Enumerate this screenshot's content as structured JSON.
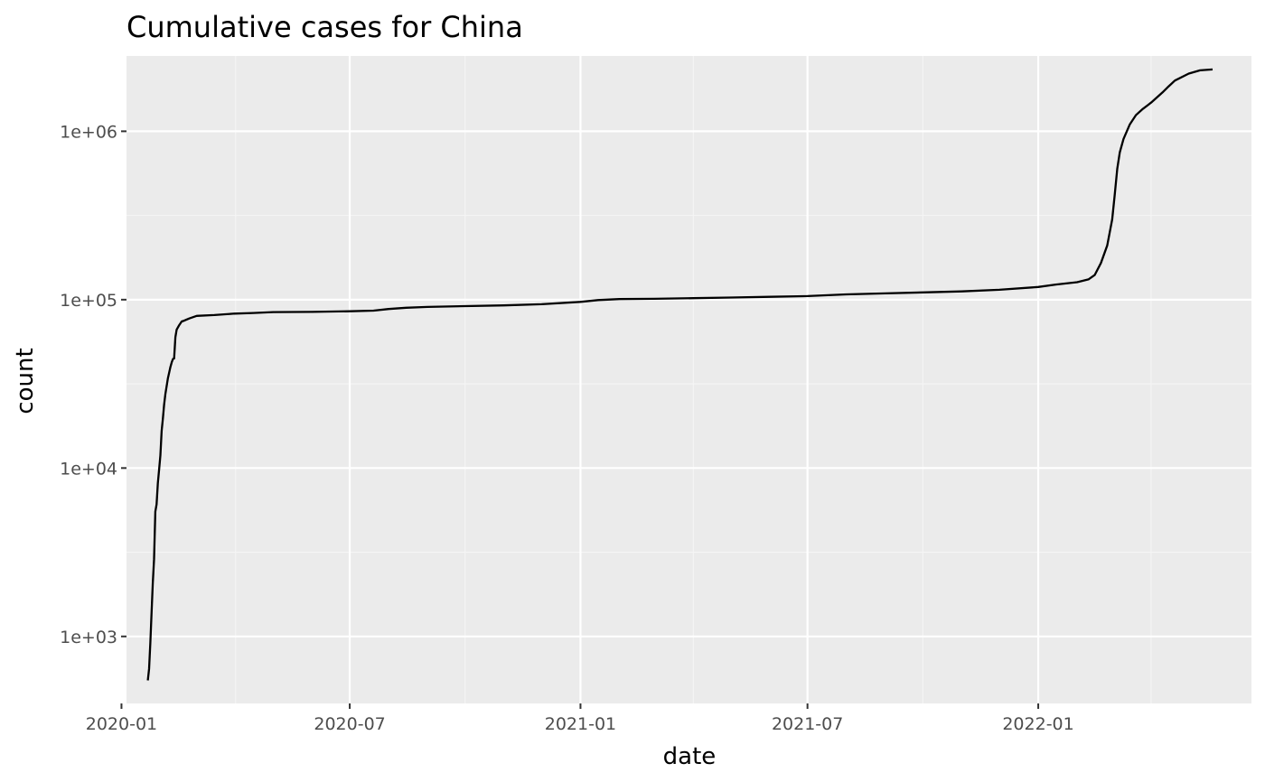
{
  "chart_data": {
    "type": "line",
    "title": "Cumulative cases for China",
    "xlabel": "date",
    "ylabel": "count",
    "x_scale": "date",
    "y_scale": "log10",
    "xlim": [
      "2020-01-05",
      "2022-06-20"
    ],
    "ylim": [
      400,
      2800000
    ],
    "x_ticks": [
      {
        "value": "2020-01-01",
        "label": "2020-01"
      },
      {
        "value": "2020-07-01",
        "label": "2020-07"
      },
      {
        "value": "2021-01-01",
        "label": "2021-01"
      },
      {
        "value": "2021-07-01",
        "label": "2021-07"
      },
      {
        "value": "2022-01-01",
        "label": "2022-01"
      }
    ],
    "x_minor_ticks": [
      "2020-04-01",
      "2020-10-01",
      "2021-04-01",
      "2021-10-01",
      "2022-04-01"
    ],
    "y_ticks": [
      {
        "value": 1000,
        "label": "1e+03"
      },
      {
        "value": 10000,
        "label": "1e+04"
      },
      {
        "value": 100000,
        "label": "1e+05"
      },
      {
        "value": 1000000,
        "label": "1e+06"
      }
    ],
    "y_minor_ticks": [
      3162,
      31623,
      316228
    ],
    "grid": true,
    "colors": {
      "panel_background": "#EBEBEB",
      "grid_major": "#FFFFFF",
      "grid_minor": "#F5F5F5",
      "line": "#000000",
      "tick_label": "#4D4D4D",
      "tick_mark": "#333333"
    },
    "series": [
      {
        "x": [
          "2020-01-22",
          "2020-01-23",
          "2020-01-24",
          "2020-01-25",
          "2020-01-26",
          "2020-01-27",
          "2020-01-28",
          "2020-01-29",
          "2020-01-30",
          "2020-01-31",
          "2020-02-01",
          "2020-02-02",
          "2020-02-03",
          "2020-02-04",
          "2020-02-05",
          "2020-02-06",
          "2020-02-07",
          "2020-02-08",
          "2020-02-09",
          "2020-02-10",
          "2020-02-11",
          "2020-02-12",
          "2020-02-13",
          "2020-02-14",
          "2020-02-16",
          "2020-02-18",
          "2020-02-20",
          "2020-02-24",
          "2020-03-01",
          "2020-03-15",
          "2020-03-30",
          "2020-03-31",
          "2020-04-15",
          "2020-05-01",
          "2020-06-01",
          "2020-07-01",
          "2020-07-20",
          "2020-08-01",
          "2020-08-15",
          "2020-09-01",
          "2020-10-01",
          "2020-11-01",
          "2020-12-01",
          "2021-01-01",
          "2021-01-15",
          "2021-02-01",
          "2021-03-01",
          "2021-04-01",
          "2021-05-01",
          "2021-06-01",
          "2021-07-01",
          "2021-08-01",
          "2021-09-01",
          "2021-10-01",
          "2021-11-01",
          "2021-12-01",
          "2022-01-01",
          "2022-01-15",
          "2022-02-01",
          "2022-02-10",
          "2022-02-15",
          "2022-02-20",
          "2022-02-25",
          "2022-03-01",
          "2022-03-03",
          "2022-03-05",
          "2022-03-07",
          "2022-03-10",
          "2022-03-15",
          "2022-03-20",
          "2022-03-25",
          "2022-04-01",
          "2022-04-10",
          "2022-04-15",
          "2022-04-20",
          "2022-05-01",
          "2022-05-10",
          "2022-05-20"
        ],
        "y": [
          548,
          643,
          920,
          1406,
          2075,
          2877,
          5509,
          6087,
          8141,
          9802,
          11891,
          16630,
          19716,
          23707,
          27440,
          30587,
          34110,
          36814,
          39829,
          42354,
          44386,
          44759,
          59895,
          66358,
          70513,
          74185,
          75077,
          77262,
          80151,
          81003,
          82545,
          82631,
          83356,
          84373,
          84570,
          85307,
          86045,
          88000,
          89500,
          90500,
          91500,
          92500,
          94000,
          97000,
          99500,
          100800,
          101200,
          102000,
          103000,
          104000,
          105000,
          107500,
          109000,
          110500,
          112000,
          114500,
          119000,
          123000,
          127000,
          132000,
          140000,
          165000,
          210000,
          300000,
          420000,
          600000,
          750000,
          900000,
          1100000,
          1250000,
          1350000,
          1480000,
          1700000,
          1850000,
          2000000,
          2200000,
          2300000,
          2330000
        ]
      }
    ]
  }
}
